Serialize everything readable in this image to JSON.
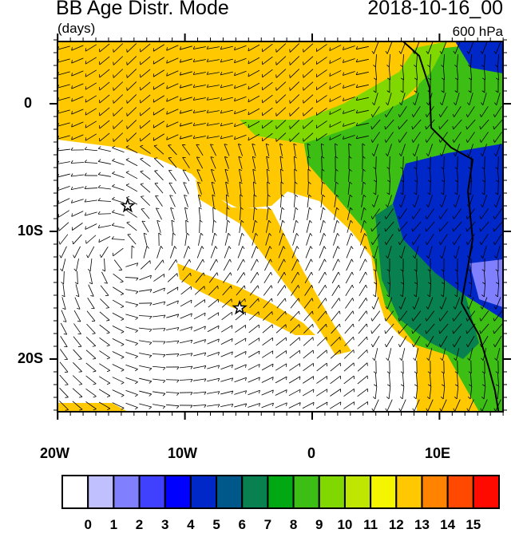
{
  "title": "BB Age Distr. Mode",
  "units": "(days)",
  "date": "2018-10-16_00",
  "level": "600 hPa",
  "map": {
    "lon_range": [
      -20,
      15
    ],
    "lat_range": [
      -24,
      5
    ],
    "x_labels": [
      "20W",
      "10W",
      "0",
      "10E"
    ],
    "y_labels": [
      "0",
      "10S",
      "20S"
    ],
    "markers": [
      {
        "lon": -14.5,
        "lat": -8,
        "symbol": "star"
      },
      {
        "lon": -5.7,
        "lat": -16,
        "symbol": "star"
      }
    ]
  },
  "colorbar": {
    "labels": [
      "0",
      "1",
      "2",
      "3",
      "4",
      "5",
      "6",
      "7",
      "8",
      "9",
      "10",
      "11",
      "12",
      "13",
      "14",
      "15"
    ],
    "colors": [
      "#ffffff",
      "#c0c0ff",
      "#8080ff",
      "#4040ff",
      "#0000ff",
      "#0028c8",
      "#00588a",
      "#08804f",
      "#00a814",
      "#3cbe14",
      "#80d800",
      "#bee600",
      "#f5f500",
      "#ffc800",
      "#ff8200",
      "#ff4800",
      "#ff0a00"
    ]
  }
}
